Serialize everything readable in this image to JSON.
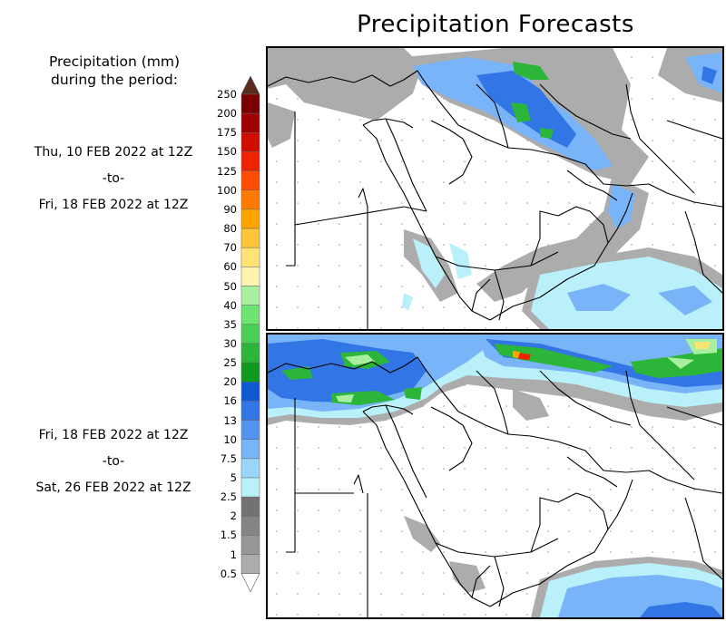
{
  "title": "Precipitation Forecasts",
  "legend": {
    "heading_line1": "Precipitation (mm)",
    "heading_line2": "during the period:",
    "levels": [
      "0.5",
      "1",
      "1.5",
      "2",
      "2.5",
      "5",
      "7.5",
      "10",
      "13",
      "16",
      "20",
      "25",
      "30",
      "35",
      "40",
      "50",
      "60",
      "70",
      "80",
      "90",
      "100",
      "125",
      "150",
      "175",
      "200",
      "250"
    ],
    "colors": [
      "#c0c0c0",
      "#acacac",
      "#989898",
      "#858585",
      "#727272",
      "#b9f0fa",
      "#9ad5fa",
      "#78b4f7",
      "#5393f0",
      "#3176e4",
      "#1059d2",
      "#0f9a1e",
      "#2cb639",
      "#4ace56",
      "#6ee472",
      "#a8f0a0",
      "#fff4ae",
      "#ffe375",
      "#ffc53b",
      "#ffa500",
      "#ff7a00",
      "#ff4c00",
      "#ef2200",
      "#cf0e00",
      "#a00000",
      "#7a0000"
    ],
    "top_color": "#5a2a1a"
  },
  "periods": [
    {
      "start": "Thu, 10 FEB 2022 at 12Z",
      "sep": "-to-",
      "end": "Fri, 18 FEB 2022 at 12Z"
    },
    {
      "start": "Fri, 18 FEB 2022 at 12Z",
      "sep": "-to-",
      "end": "Sat, 26 FEB 2022 at 12Z"
    }
  ]
}
